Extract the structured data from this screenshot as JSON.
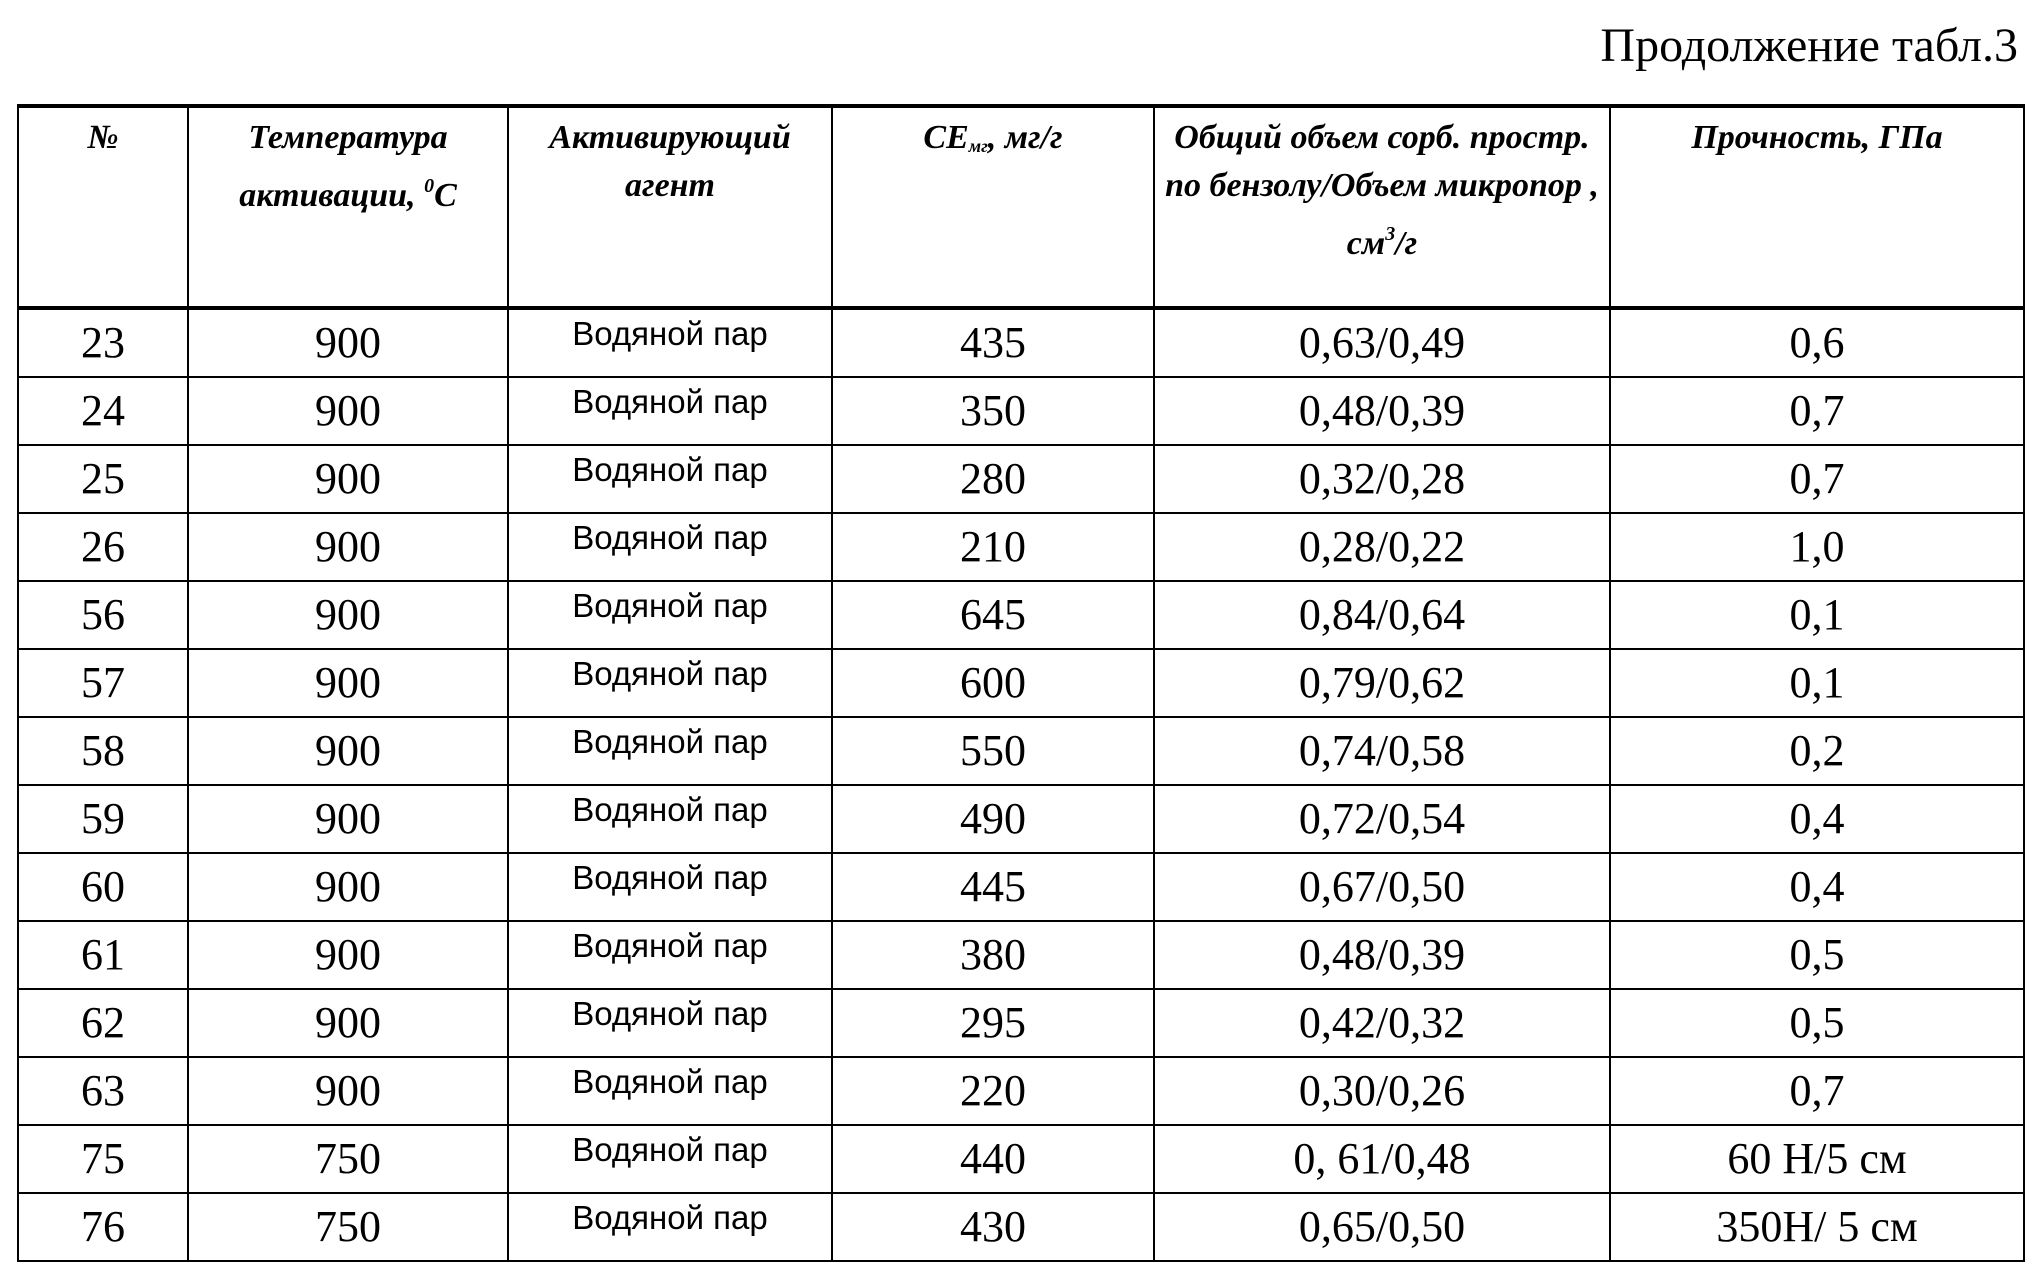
{
  "caption": "Продолжение табл.3",
  "headers": {
    "no": "№",
    "temp": "Температура активации, ",
    "temp_unit_sup": "0",
    "temp_unit": "С",
    "agent": "Активирующий агент",
    "ce": "СЕ",
    "ce_sub": "мг",
    "ce_unit": ", мг/г",
    "volume": "Общий объем сорб. простр. по бензолу/Объем микропор , см",
    "volume_sup": "3",
    "volume_unit": "/г",
    "strength": "Прочность, ГПа"
  },
  "rows": [
    {
      "no": "23",
      "temp": "900",
      "agent": "Водяной пар",
      "ce": "435",
      "volume": "0,63/0,49",
      "strength": "0,6"
    },
    {
      "no": "24",
      "temp": "900",
      "agent": "Водяной пар",
      "ce": "350",
      "volume": "0,48/0,39",
      "strength": "0,7"
    },
    {
      "no": "25",
      "temp": "900",
      "agent": "Водяной пар",
      "ce": "280",
      "volume": "0,32/0,28",
      "strength": "0,7"
    },
    {
      "no": "26",
      "temp": "900",
      "agent": "Водяной пар",
      "ce": "210",
      "volume": "0,28/0,22",
      "strength": "1,0"
    },
    {
      "no": "56",
      "temp": "900",
      "agent": "Водяной пар",
      "ce": "645",
      "volume": "0,84/0,64",
      "strength": "0,1"
    },
    {
      "no": "57",
      "temp": "900",
      "agent": "Водяной пар",
      "ce": "600",
      "volume": "0,79/0,62",
      "strength": "0,1"
    },
    {
      "no": "58",
      "temp": "900",
      "agent": "Водяной пар",
      "ce": "550",
      "volume": "0,74/0,58",
      "strength": "0,2"
    },
    {
      "no": "59",
      "temp": "900",
      "agent": "Водяной пар",
      "ce": "490",
      "volume": "0,72/0,54",
      "strength": "0,4"
    },
    {
      "no": "60",
      "temp": "900",
      "agent": "Водяной пар",
      "ce": "445",
      "volume": "0,67/0,50",
      "strength": "0,4"
    },
    {
      "no": "61",
      "temp": "900",
      "agent": "Водяной пар",
      "ce": "380",
      "volume": "0,48/0,39",
      "strength": "0,5"
    },
    {
      "no": "62",
      "temp": "900",
      "agent": "Водяной пар",
      "ce": "295",
      "volume": "0,42/0,32",
      "strength": "0,5"
    },
    {
      "no": "63",
      "temp": "900",
      "agent": "Водяной пар",
      "ce": "220",
      "volume": "0,30/0,26",
      "strength": "0,7"
    },
    {
      "no": "75",
      "temp": "750",
      "agent": "Водяной пар",
      "ce": "440",
      "volume": "0, 61/0,48",
      "strength": "60 Н/5 см"
    },
    {
      "no": "76",
      "temp": "750",
      "agent": "Водяной пар",
      "ce": "430",
      "volume": "0,65/0,50",
      "strength": "350Н/ 5 см"
    }
  ]
}
